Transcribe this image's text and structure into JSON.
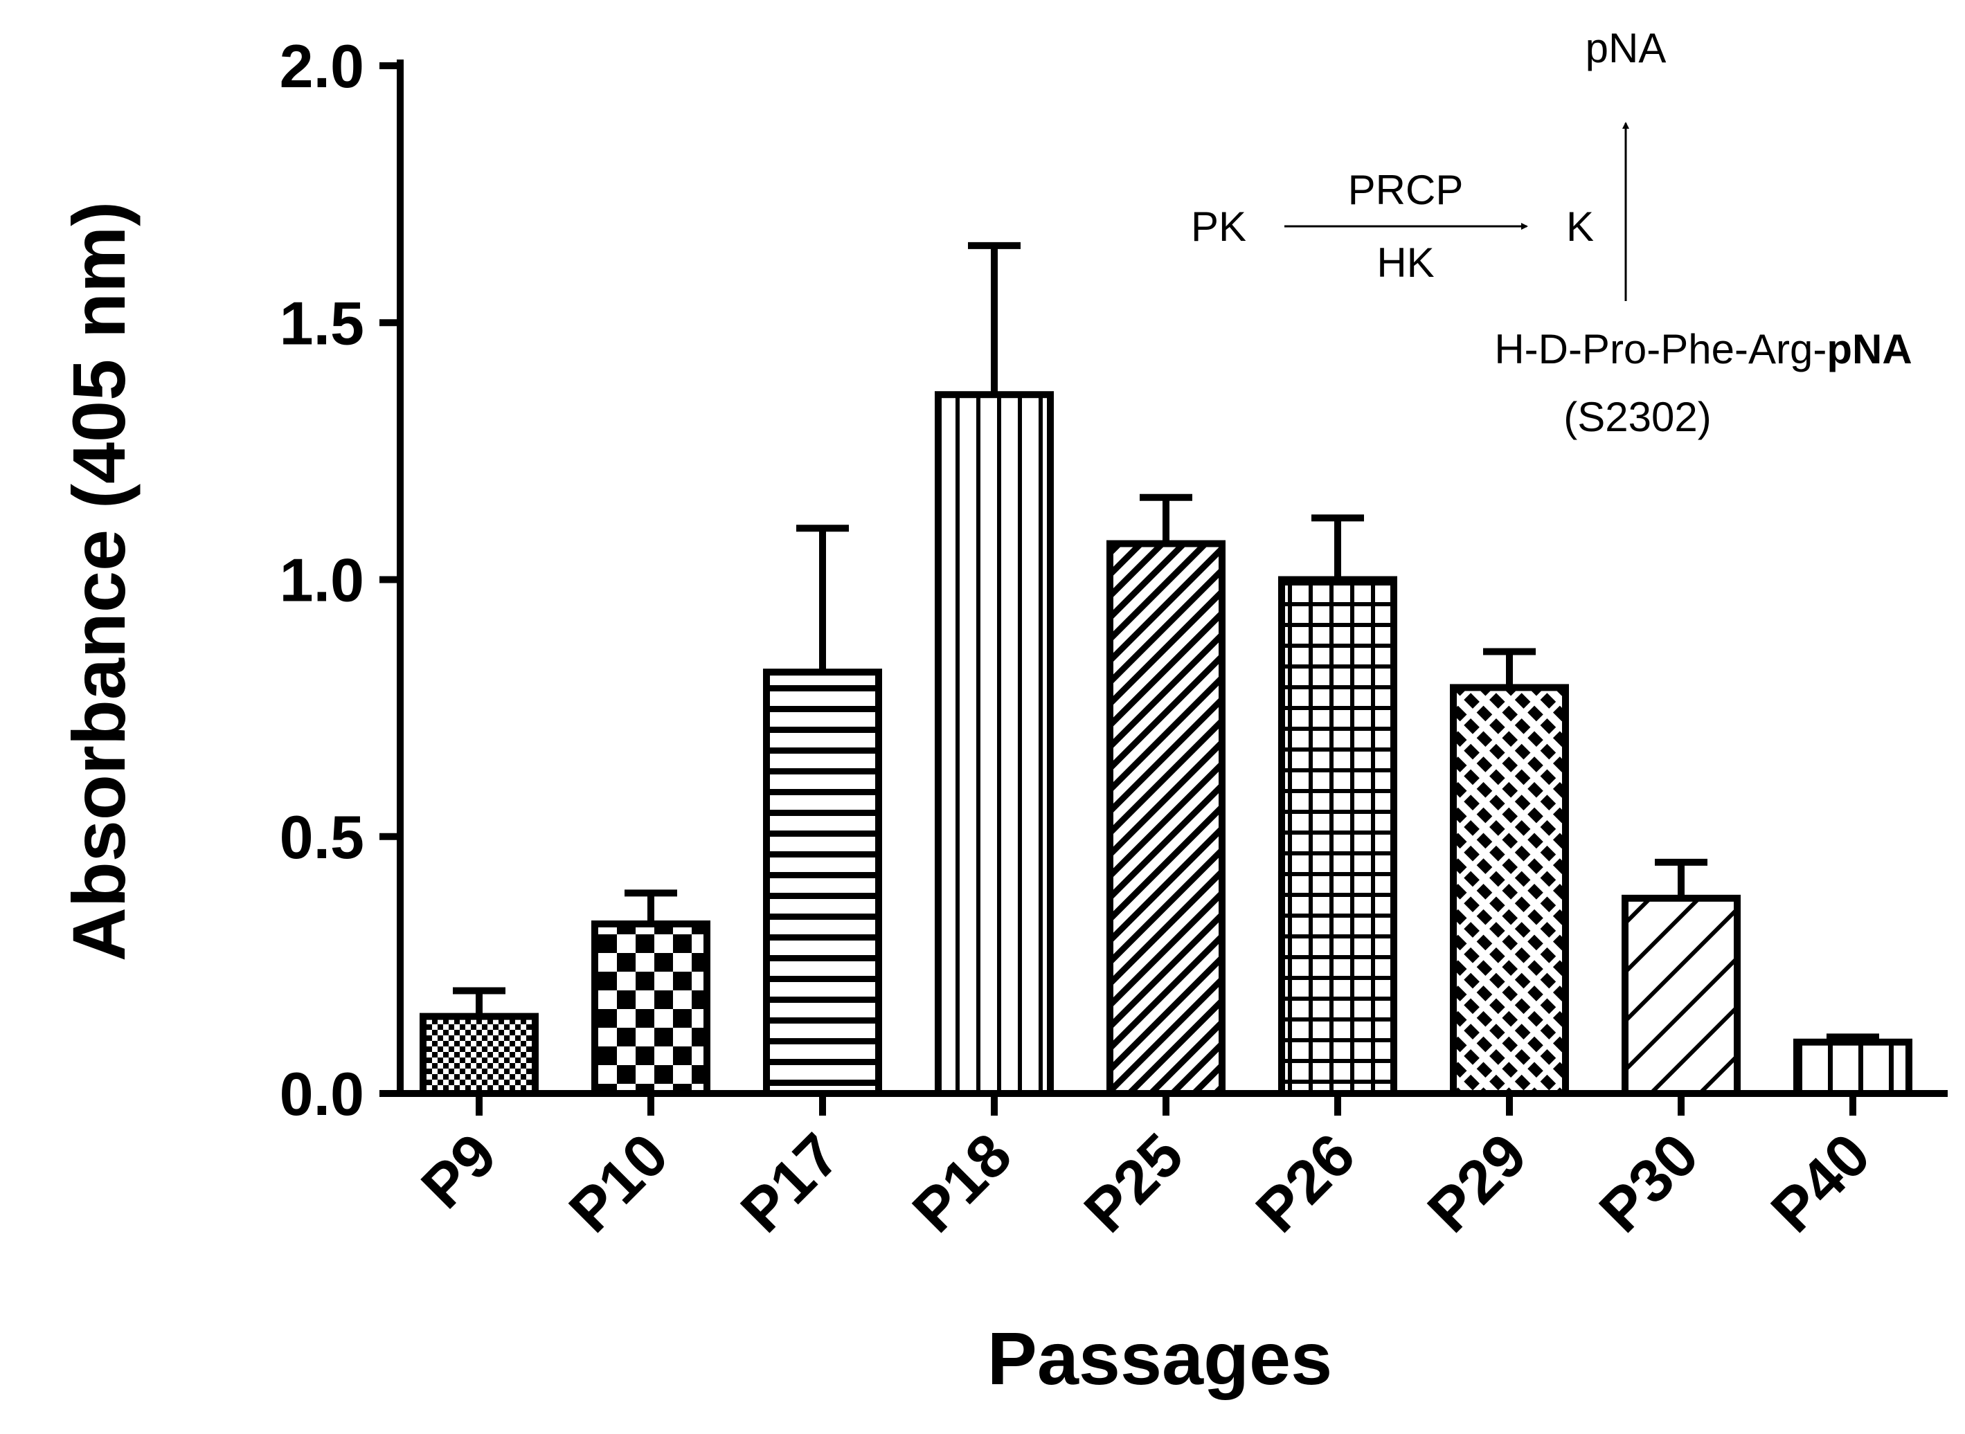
{
  "chart_data": {
    "type": "bar",
    "xlabel": "Passages",
    "ylabel": "Absorbance (405 nm)",
    "ylim": [
      0,
      2.0
    ],
    "yticks": [
      "0.0",
      "0.5",
      "1.0",
      "1.5",
      "2.0"
    ],
    "ytick_values": [
      0,
      0.5,
      1.0,
      1.5,
      2.0
    ],
    "categories": [
      "P9",
      "P10",
      "P17",
      "P18",
      "P25",
      "P26",
      "P29",
      "P30",
      "P40"
    ],
    "values": [
      0.15,
      0.33,
      0.82,
      1.36,
      1.07,
      1.0,
      0.79,
      0.38,
      0.1
    ],
    "errors": [
      0.05,
      0.06,
      0.28,
      0.29,
      0.09,
      0.12,
      0.07,
      0.07,
      0.01
    ],
    "patterns": [
      "fine-check",
      "checkerboard",
      "horizontal-lines",
      "vertical-lines",
      "diagonal-dense",
      "grid",
      "diagonal-dashed",
      "diagonal-wide",
      "vertical-wide"
    ],
    "grid": false,
    "legend": "none"
  },
  "scheme": {
    "substrate": "PK",
    "cofactor_top": "PRCP",
    "cofactor_bottom": "HK",
    "product": "K",
    "released": "pNA",
    "chromogen_prefix": "H-D-Pro-Phe-Arg-",
    "chromogen_bold": "pNA",
    "chromogen_name": "(S2302)"
  }
}
